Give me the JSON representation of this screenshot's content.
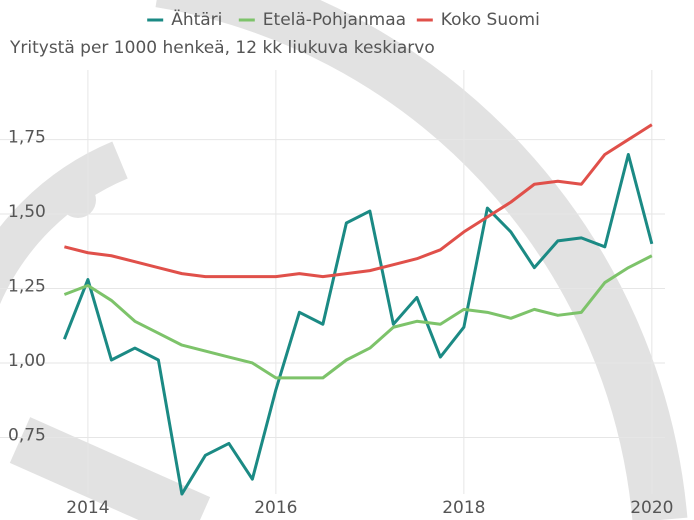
{
  "chart_data": {
    "type": "line",
    "subtitle": "Yritystä per 1000 henkeä, 12 kk liukuva keskiarvo",
    "x": [
      2013.75,
      2014,
      2014.25,
      2014.5,
      2014.75,
      2015,
      2015.25,
      2015.5,
      2015.75,
      2016,
      2016.25,
      2016.5,
      2016.75,
      2017,
      2017.25,
      2017.5,
      2017.75,
      2018,
      2018.25,
      2018.5,
      2018.75,
      2019,
      2019.25,
      2019.5,
      2019.75,
      2020
    ],
    "series": [
      {
        "name": "Ähtäri",
        "color": "#1b8a84",
        "values": [
          1.08,
          1.28,
          1.01,
          1.05,
          1.01,
          0.56,
          0.69,
          0.73,
          0.61,
          0.91,
          1.17,
          1.13,
          1.47,
          1.51,
          1.13,
          1.22,
          1.02,
          1.12,
          1.52,
          1.44,
          1.32,
          1.41,
          1.42,
          1.39,
          1.7,
          1.4
        ]
      },
      {
        "name": "Etelä-Pohjanmaa",
        "color": "#7dc36a",
        "values": [
          1.23,
          1.26,
          1.21,
          1.14,
          1.1,
          1.06,
          1.04,
          1.02,
          1.0,
          0.95,
          0.95,
          0.95,
          1.01,
          1.05,
          1.12,
          1.14,
          1.13,
          1.18,
          1.17,
          1.15,
          1.18,
          1.16,
          1.17,
          1.27,
          1.32,
          1.36
        ]
      },
      {
        "name": "Koko Suomi",
        "color": "#e0504a",
        "values": [
          1.39,
          1.37,
          1.36,
          1.34,
          1.32,
          1.3,
          1.29,
          1.29,
          1.29,
          1.29,
          1.3,
          1.29,
          1.3,
          1.31,
          1.33,
          1.35,
          1.38,
          1.44,
          1.49,
          1.54,
          1.6,
          1.61,
          1.6,
          1.7,
          1.75,
          1.8
        ]
      }
    ],
    "xlim": [
      2013.65,
      2020.14
    ],
    "xticks": [
      2014,
      2016,
      2018,
      2020
    ],
    "ylim": [
      0.54,
      1.95
    ],
    "yticks": [
      {
        "value": 0.75,
        "label": "0,75"
      },
      {
        "value": 1.0,
        "label": "1,00"
      },
      {
        "value": 1.25,
        "label": "1,25"
      },
      {
        "value": 1.5,
        "label": "1,50"
      },
      {
        "value": 1.75,
        "label": "1,75"
      }
    ],
    "grid": true,
    "legend": "top"
  }
}
